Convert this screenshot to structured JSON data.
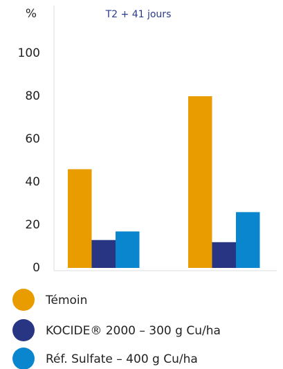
{
  "chart_data": {
    "type": "bar",
    "y_label": "%",
    "annotation": "T2 + 41 jours",
    "categories": [
      null,
      null
    ],
    "series": [
      {
        "name": "Témoin",
        "color": "#e89c00",
        "values": [
          46,
          80
        ]
      },
      {
        "name": "KOCIDE® 2000 – 300 g Cu/ha",
        "color": "#283583",
        "values": [
          13,
          12
        ]
      },
      {
        "name": "Réf. Sulfate – 400 g Cu/ha",
        "color": "#0a86cf",
        "values": [
          17,
          26
        ]
      }
    ],
    "ylim": [
      0,
      120
    ],
    "yticks": [
      0,
      20,
      40,
      60,
      80,
      100
    ],
    "grid": false
  }
}
